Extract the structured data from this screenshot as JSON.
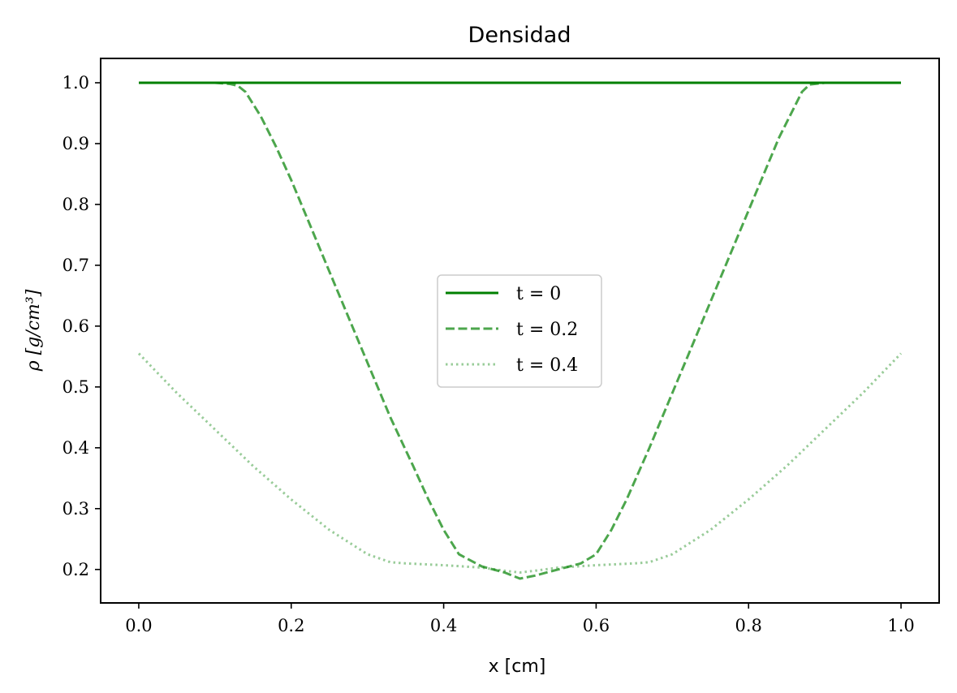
{
  "chart_data": {
    "type": "line",
    "title": "Densidad",
    "xlabel": "x [cm]",
    "ylabel": "ρ [g/cm³]",
    "xlim": [
      -0.05,
      1.05
    ],
    "ylim": [
      0.145,
      1.04
    ],
    "xticks": [
      "0.0",
      "0.2",
      "0.4",
      "0.6",
      "0.8",
      "1.0"
    ],
    "xtick_values": [
      0.0,
      0.2,
      0.4,
      0.6,
      0.8,
      1.0
    ],
    "yticks": [
      "0.2",
      "0.3",
      "0.4",
      "0.5",
      "0.6",
      "0.7",
      "0.8",
      "0.9",
      "1.0"
    ],
    "ytick_values": [
      0.2,
      0.3,
      0.4,
      0.5,
      0.6,
      0.7,
      0.8,
      0.9,
      1.0
    ],
    "grid": false,
    "legend_position": "center",
    "series": [
      {
        "name": "t = 0",
        "color": "#008000",
        "style": "solid",
        "opacity": 1.0,
        "x": [
          0.0,
          0.5,
          1.0
        ],
        "y": [
          1.0,
          1.0,
          1.0
        ]
      },
      {
        "name": "t = 0.2",
        "color": "#008000",
        "style": "dashed",
        "opacity": 0.7,
        "x": [
          0.0,
          0.1,
          0.12,
          0.13,
          0.14,
          0.16,
          0.18,
          0.2,
          0.22,
          0.25,
          0.28,
          0.3,
          0.33,
          0.36,
          0.38,
          0.4,
          0.42,
          0.45,
          0.48,
          0.5,
          0.52,
          0.55,
          0.58,
          0.6,
          0.62,
          0.64,
          0.67,
          0.7,
          0.72,
          0.75,
          0.78,
          0.8,
          0.82,
          0.84,
          0.86,
          0.87,
          0.88,
          0.9,
          1.0
        ],
        "y": [
          1.0,
          1.0,
          0.998,
          0.995,
          0.985,
          0.945,
          0.895,
          0.84,
          0.78,
          0.69,
          0.6,
          0.54,
          0.45,
          0.37,
          0.315,
          0.265,
          0.225,
          0.205,
          0.195,
          0.185,
          0.19,
          0.2,
          0.21,
          0.225,
          0.265,
          0.315,
          0.4,
          0.49,
          0.55,
          0.64,
          0.73,
          0.79,
          0.85,
          0.91,
          0.96,
          0.985,
          0.997,
          1.0,
          1.0
        ]
      },
      {
        "name": "t = 0.4",
        "color": "#008000",
        "style": "dotted",
        "opacity": 0.4,
        "x": [
          0.0,
          0.05,
          0.1,
          0.15,
          0.2,
          0.25,
          0.3,
          0.33,
          0.35,
          0.4,
          0.45,
          0.48,
          0.5,
          0.52,
          0.55,
          0.6,
          0.65,
          0.67,
          0.7,
          0.75,
          0.8,
          0.85,
          0.9,
          0.95,
          1.0
        ],
        "y": [
          0.555,
          0.49,
          0.43,
          0.37,
          0.315,
          0.265,
          0.225,
          0.212,
          0.21,
          0.207,
          0.203,
          0.198,
          0.195,
          0.198,
          0.203,
          0.207,
          0.21,
          0.212,
          0.225,
          0.265,
          0.315,
          0.37,
          0.43,
          0.49,
          0.555
        ]
      }
    ]
  }
}
